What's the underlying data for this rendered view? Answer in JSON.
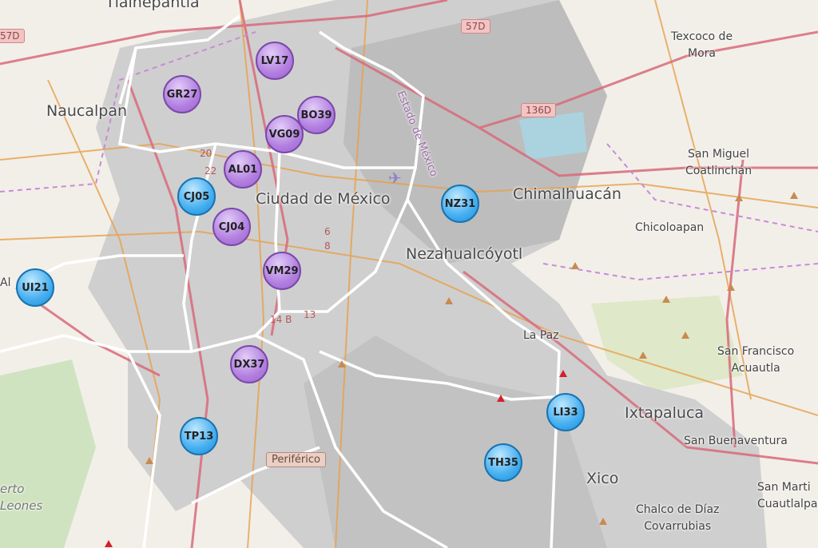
{
  "map": {
    "places": [
      {
        "id": "tlalnepantla",
        "text": "Tlalnepantla"
      },
      {
        "id": "naucalpan",
        "text": "Naucalpan"
      },
      {
        "id": "texcoco",
        "text": "Texcoco de\nMora"
      },
      {
        "id": "estado",
        "text": "Estado de México"
      },
      {
        "id": "chimalhuacan",
        "text": "Chimalhuacán"
      },
      {
        "id": "sanmiguel",
        "text": "San Miguel\nCoatlinchán"
      },
      {
        "id": "chicoloapan",
        "text": "Chicoloapan"
      },
      {
        "id": "cdmx",
        "text": "Ciudad de México"
      },
      {
        "id": "neza",
        "text": "Nezahualcóyotl"
      },
      {
        "id": "lapaz",
        "text": "La Paz"
      },
      {
        "id": "sanfrancisco",
        "text": "San Francisco\nAcuautla"
      },
      {
        "id": "ixtapaluca",
        "text": "Ixtapaluca"
      },
      {
        "id": "sanbuenaventura",
        "text": "San Buenaventura"
      },
      {
        "id": "sanmartin",
        "text": "San Marti\nCuautlalpa"
      },
      {
        "id": "xico",
        "text": "Xico"
      },
      {
        "id": "chalco",
        "text": "Chalco de Díaz\nCovarrubias"
      },
      {
        "id": "leones",
        "text": "erto\nLeones"
      },
      {
        "id": "al",
        "text": "Al"
      }
    ],
    "shields": {
      "s57d_left": "57D",
      "s57d_top": "57D",
      "s136d": "136D",
      "periferico": "Periférico"
    },
    "road_numbers": [
      "20",
      "22",
      "6",
      "8",
      "14 B",
      "13"
    ],
    "colors": {
      "purple_marker": "#b27fe0",
      "blue_marker": "#44aef0",
      "urban": "#c8c8c8",
      "base": "#f2efe9"
    }
  },
  "markers": [
    {
      "label": "LV17",
      "color": "purple"
    },
    {
      "label": "GR27",
      "color": "purple"
    },
    {
      "label": "BO39",
      "color": "purple"
    },
    {
      "label": "VG09",
      "color": "purple"
    },
    {
      "label": "AL01",
      "color": "purple"
    },
    {
      "label": "CJ05",
      "color": "blue"
    },
    {
      "label": "CJ04",
      "color": "purple"
    },
    {
      "label": "NZ31",
      "color": "blue"
    },
    {
      "label": "UI21",
      "color": "blue"
    },
    {
      "label": "VM29",
      "color": "purple"
    },
    {
      "label": "DX37",
      "color": "purple"
    },
    {
      "label": "LI33",
      "color": "blue"
    },
    {
      "label": "TP13",
      "color": "blue"
    },
    {
      "label": "TH35",
      "color": "blue"
    }
  ]
}
